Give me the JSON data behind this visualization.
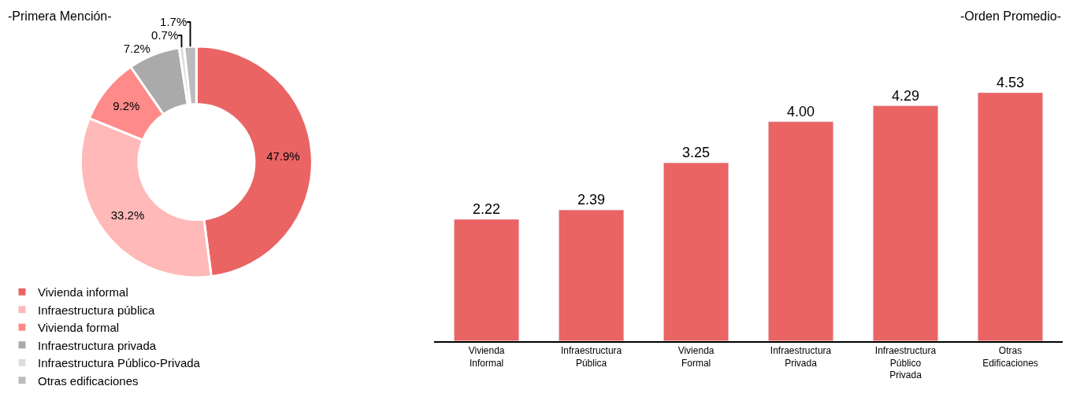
{
  "chart_data": [
    {
      "type": "donut",
      "title": "-Primera Mención-",
      "categories": [
        "Vivienda informal",
        "Infraestructura pública",
        "Vivienda formal",
        "Infraestructura privada",
        "Infraestructura Público-Privada",
        "Otras edificaciones"
      ],
      "values": [
        47.9,
        33.2,
        9.2,
        7.2,
        0.7,
        1.7
      ],
      "value_labels": [
        "47.9%",
        "33.2%",
        "9.2%",
        "7.2%",
        "0.7%",
        "1.7%"
      ],
      "colors": [
        "#ea6464",
        "#ffb9b9",
        "#ff8a8a",
        "#aaaaaa",
        "#dddddd",
        "#bcbcbc"
      ],
      "legend": "bottom"
    },
    {
      "type": "bar",
      "title": "-Orden Promedio-",
      "categories": [
        "Vivienda Informal",
        "Infraestructura Pública",
        "Vivienda Formal",
        "Infraestructura Privada",
        "Infraestructura Público Privada",
        "Otras Edificaciones"
      ],
      "values": [
        2.22,
        2.39,
        3.25,
        4.0,
        4.29,
        4.53
      ],
      "value_labels": [
        "2.22",
        "2.39",
        "3.25",
        "4.00",
        "4.29",
        "4.53"
      ],
      "color": "#ea6464"
    }
  ]
}
